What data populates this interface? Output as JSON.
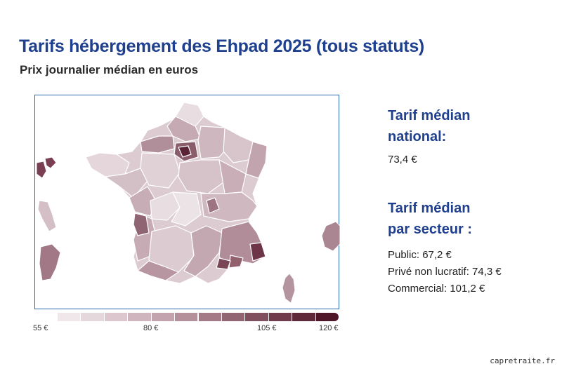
{
  "title": "Tarifs hébergement des Ehpad 2025 (tous statuts)",
  "subtitle": "Prix journalier médian en euros",
  "legend": {
    "scale_min": 55,
    "scale_max": 120,
    "colors": [
      "#efe7ea",
      "#e5d8dc",
      "#dbc7cd",
      "#cfb5bd",
      "#c3a3ad",
      "#b4909b",
      "#a47a87",
      "#926573",
      "#81505f",
      "#703c4c",
      "#5f293a",
      "#4e1627"
    ],
    "labels": [
      "55 €",
      "80 €",
      "105 €",
      "120 €"
    ]
  },
  "national": {
    "heading_line1": "Tarif médian",
    "heading_line2": "national:",
    "value": "73,4 €"
  },
  "sector": {
    "heading_line1": "Tarif médian",
    "heading_line2": "par secteur :",
    "rows": [
      "Public: 67,2 €",
      "Privé non lucratif: 74,3 €",
      "Commercial: 101,2 €"
    ]
  },
  "site": "capretraite.fr"
}
